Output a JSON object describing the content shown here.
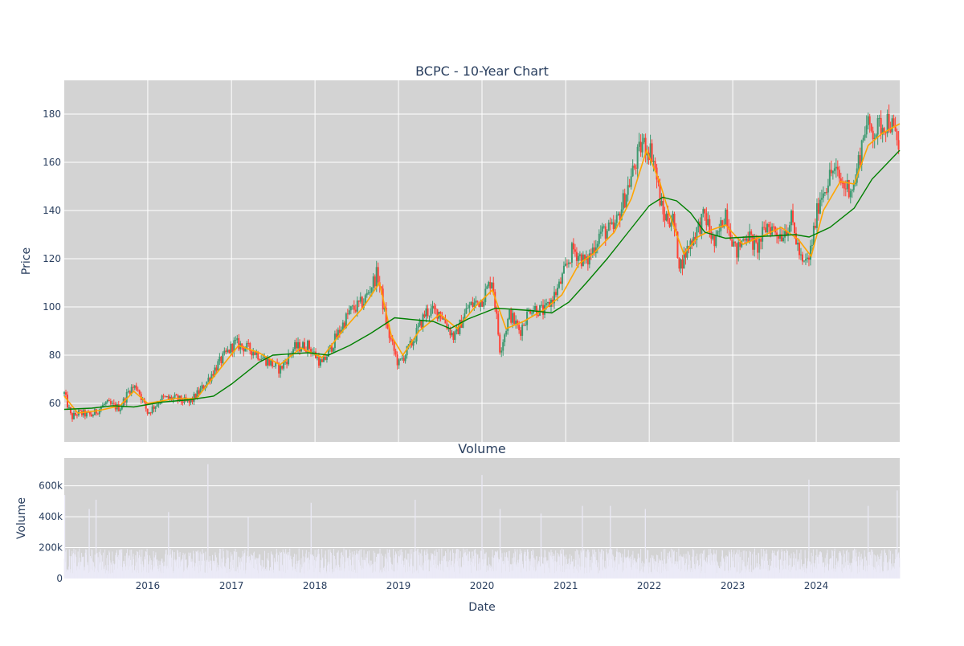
{
  "chart_data": [
    {
      "type": "candlestick",
      "title": "BCPC - 10-Year Chart",
      "ylabel": "Price",
      "x_range": [
        "2015-01-01",
        "2024-12-31"
      ],
      "ylim": [
        44,
        194
      ],
      "yticks": [
        60,
        80,
        100,
        120,
        140,
        160,
        180
      ],
      "xticks": [
        {
          "date": "2016-01-01",
          "label": "2016"
        },
        {
          "date": "2017-01-01",
          "label": "2017"
        },
        {
          "date": "2018-01-01",
          "label": "2018"
        },
        {
          "date": "2019-01-01",
          "label": "2019"
        },
        {
          "date": "2020-01-01",
          "label": "2020"
        },
        {
          "date": "2021-01-01",
          "label": "2021"
        },
        {
          "date": "2022-01-01",
          "label": "2022"
        },
        {
          "date": "2023-01-01",
          "label": "2023"
        },
        {
          "date": "2024-01-01",
          "label": "2024"
        }
      ],
      "grid": true,
      "colors": {
        "increasing": "#3d9970",
        "decreasing": "#ff4136",
        "short_ma": "#ffa500",
        "long_ma": "#008000",
        "plot_bg": "#d3d3d3"
      },
      "price_path": [
        [
          "2015-01-01",
          64
        ],
        [
          "2015-02-01",
          54
        ],
        [
          "2015-03-01",
          56
        ],
        [
          "2015-05-01",
          55
        ],
        [
          "2015-07-01",
          60
        ],
        [
          "2015-09-01",
          58
        ],
        [
          "2015-10-15",
          66
        ],
        [
          "2015-11-15",
          67
        ],
        [
          "2016-01-01",
          56
        ],
        [
          "2016-03-01",
          62
        ],
        [
          "2016-05-01",
          62
        ],
        [
          "2016-07-01",
          60
        ],
        [
          "2016-09-01",
          67
        ],
        [
          "2016-11-01",
          76
        ],
        [
          "2017-01-15",
          85
        ],
        [
          "2017-04-01",
          82
        ],
        [
          "2017-06-01",
          78
        ],
        [
          "2017-08-01",
          74
        ],
        [
          "2017-10-01",
          83
        ],
        [
          "2017-12-01",
          84
        ],
        [
          "2018-02-01",
          76
        ],
        [
          "2018-04-01",
          87
        ],
        [
          "2018-06-01",
          98
        ],
        [
          "2018-08-01",
          102
        ],
        [
          "2018-10-01",
          114
        ],
        [
          "2018-11-15",
          90
        ],
        [
          "2019-01-01",
          76
        ],
        [
          "2019-03-01",
          85
        ],
        [
          "2019-05-01",
          98
        ],
        [
          "2019-07-01",
          98
        ],
        [
          "2019-09-01",
          87
        ],
        [
          "2019-11-01",
          100
        ],
        [
          "2020-01-01",
          103
        ],
        [
          "2020-02-15",
          112
        ],
        [
          "2020-03-20",
          82
        ],
        [
          "2020-05-01",
          97
        ],
        [
          "2020-06-15",
          90
        ],
        [
          "2020-08-01",
          100
        ],
        [
          "2020-10-01",
          98
        ],
        [
          "2020-12-01",
          108
        ],
        [
          "2021-02-01",
          124
        ],
        [
          "2021-04-01",
          118
        ],
        [
          "2021-06-01",
          131
        ],
        [
          "2021-08-01",
          132
        ],
        [
          "2021-10-01",
          150
        ],
        [
          "2021-12-01",
          168
        ],
        [
          "2022-01-15",
          164
        ],
        [
          "2022-03-01",
          138
        ],
        [
          "2022-04-15",
          136
        ],
        [
          "2022-05-15",
          117
        ],
        [
          "2022-07-01",
          127
        ],
        [
          "2022-09-01",
          138
        ],
        [
          "2022-10-15",
          125
        ],
        [
          "2022-12-01",
          140
        ],
        [
          "2023-01-15",
          122
        ],
        [
          "2023-03-01",
          131
        ],
        [
          "2023-04-15",
          124
        ],
        [
          "2023-06-01",
          134
        ],
        [
          "2023-08-01",
          130
        ],
        [
          "2023-09-15",
          136
        ],
        [
          "2023-11-01",
          117
        ],
        [
          "2023-12-01",
          120
        ],
        [
          "2024-01-15",
          145
        ],
        [
          "2024-03-15",
          157
        ],
        [
          "2024-05-01",
          150
        ],
        [
          "2024-06-15",
          150
        ],
        [
          "2024-08-01",
          175
        ],
        [
          "2024-09-15",
          173
        ],
        [
          "2024-11-15",
          178
        ],
        [
          "2024-12-31",
          165
        ]
      ],
      "series": [
        {
          "style": "short_ma",
          "points": [
            [
              "2015-01-01",
              63
            ],
            [
              "2015-03-01",
              56
            ],
            [
              "2015-06-01",
              57
            ],
            [
              "2015-09-01",
              59
            ],
            [
              "2015-11-01",
              65
            ],
            [
              "2016-01-01",
              60
            ],
            [
              "2016-05-01",
              62
            ],
            [
              "2016-08-01",
              62
            ],
            [
              "2016-11-01",
              73
            ],
            [
              "2017-02-01",
              84
            ],
            [
              "2017-05-01",
              81
            ],
            [
              "2017-08-01",
              76
            ],
            [
              "2017-11-01",
              83
            ],
            [
              "2018-02-01",
              79
            ],
            [
              "2018-05-01",
              90
            ],
            [
              "2018-08-01",
              100
            ],
            [
              "2018-10-10",
              110
            ],
            [
              "2018-12-01",
              88
            ],
            [
              "2019-01-20",
              80
            ],
            [
              "2019-04-01",
              90
            ],
            [
              "2019-07-01",
              97
            ],
            [
              "2019-09-15",
              91
            ],
            [
              "2019-12-01",
              100
            ],
            [
              "2020-02-15",
              107
            ],
            [
              "2020-04-15",
              91
            ],
            [
              "2020-07-01",
              94
            ],
            [
              "2020-10-01",
              99
            ],
            [
              "2020-12-15",
              105
            ],
            [
              "2021-03-01",
              118
            ],
            [
              "2021-05-01",
              122
            ],
            [
              "2021-08-01",
              131
            ],
            [
              "2021-10-15",
              145
            ],
            [
              "2021-12-20",
              165
            ],
            [
              "2022-02-15",
              152
            ],
            [
              "2022-04-01",
              138
            ],
            [
              "2022-06-01",
              122
            ],
            [
              "2022-08-01",
              129
            ],
            [
              "2022-10-01",
              132
            ],
            [
              "2022-12-01",
              134
            ],
            [
              "2023-02-15",
              126
            ],
            [
              "2023-05-01",
              129
            ],
            [
              "2023-08-01",
              133
            ],
            [
              "2023-10-15",
              128
            ],
            [
              "2023-12-10",
              121
            ],
            [
              "2024-02-01",
              140
            ],
            [
              "2024-04-15",
              152
            ],
            [
              "2024-06-15",
              151
            ],
            [
              "2024-08-15",
              167
            ],
            [
              "2024-10-15",
              172
            ],
            [
              "2024-12-31",
              176
            ]
          ]
        },
        {
          "style": "long_ma",
          "points": [
            [
              "2015-01-01",
              57.5
            ],
            [
              "2015-05-01",
              58
            ],
            [
              "2015-08-01",
              59
            ],
            [
              "2015-11-01",
              58.5
            ],
            [
              "2016-03-01",
              60.5
            ],
            [
              "2016-07-01",
              61.5
            ],
            [
              "2016-10-15",
              63
            ],
            [
              "2017-01-01",
              68
            ],
            [
              "2017-05-01",
              77
            ],
            [
              "2017-07-01",
              80
            ],
            [
              "2017-12-01",
              81
            ],
            [
              "2018-03-01",
              80
            ],
            [
              "2018-06-01",
              84
            ],
            [
              "2018-09-01",
              89
            ],
            [
              "2018-12-15",
              95.5
            ],
            [
              "2019-04-01",
              94.5
            ],
            [
              "2019-06-01",
              94
            ],
            [
              "2019-08-15",
              91
            ],
            [
              "2019-11-01",
              95
            ],
            [
              "2020-03-01",
              99.5
            ],
            [
              "2020-05-15",
              99
            ],
            [
              "2020-08-01",
              98.5
            ],
            [
              "2020-11-01",
              97.5
            ],
            [
              "2021-01-15",
              102
            ],
            [
              "2021-04-01",
              110
            ],
            [
              "2021-07-01",
              120
            ],
            [
              "2021-10-01",
              131
            ],
            [
              "2022-01-01",
              142
            ],
            [
              "2022-03-01",
              145.5
            ],
            [
              "2022-05-01",
              144
            ],
            [
              "2022-07-01",
              139
            ],
            [
              "2022-09-01",
              131
            ],
            [
              "2022-12-01",
              128.5
            ],
            [
              "2023-03-01",
              129
            ],
            [
              "2023-07-01",
              129.5
            ],
            [
              "2023-10-01",
              130
            ],
            [
              "2023-12-01",
              129
            ],
            [
              "2024-03-01",
              133
            ],
            [
              "2024-06-15",
              141
            ],
            [
              "2024-09-01",
              153
            ],
            [
              "2024-12-31",
              165
            ]
          ]
        }
      ]
    },
    {
      "type": "bar",
      "title": "Volume",
      "ylabel": "Volume",
      "xlabel": "Date",
      "ylim": [
        0,
        780000
      ],
      "yticks": [
        {
          "value": 0,
          "label": "0"
        },
        {
          "value": 200000,
          "label": "200k"
        },
        {
          "value": 400000,
          "label": "400k"
        },
        {
          "value": 600000,
          "label": "600k"
        }
      ],
      "color": "#ebeaf7",
      "typical_volume": 130000,
      "spikes": [
        [
          "2015-01-03",
          540000
        ],
        [
          "2015-05-20",
          510000
        ],
        [
          "2015-04-20",
          450000
        ],
        [
          "2016-04-01",
          430000
        ],
        [
          "2016-09-20",
          740000
        ],
        [
          "2017-03-15",
          400000
        ],
        [
          "2017-12-15",
          490000
        ],
        [
          "2019-03-15",
          510000
        ],
        [
          "2020-01-01",
          670000
        ],
        [
          "2020-03-20",
          450000
        ],
        [
          "2020-09-15",
          420000
        ],
        [
          "2021-03-15",
          470000
        ],
        [
          "2021-07-15",
          470000
        ],
        [
          "2021-12-15",
          450000
        ],
        [
          "2023-11-30",
          640000
        ],
        [
          "2024-08-15",
          470000
        ],
        [
          "2024-12-20",
          570000
        ]
      ]
    }
  ]
}
